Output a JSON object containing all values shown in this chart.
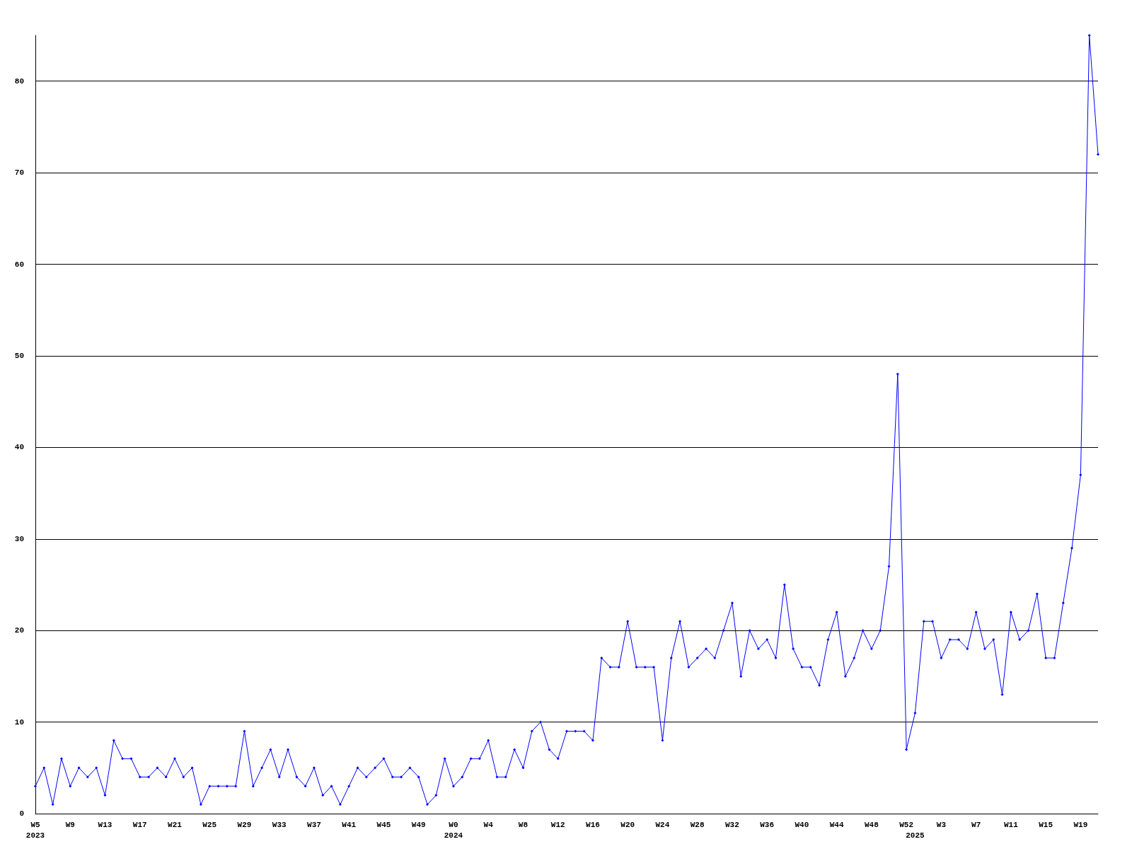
{
  "chart_data": {
    "type": "line",
    "categories": [
      "W5\n2023",
      null,
      null,
      null,
      "W9",
      null,
      null,
      null,
      "W13",
      null,
      null,
      null,
      "W17",
      null,
      null,
      null,
      "W21",
      null,
      null,
      null,
      "W25",
      null,
      null,
      null,
      "W29",
      null,
      null,
      null,
      "W33",
      null,
      null,
      null,
      "W37",
      null,
      null,
      null,
      "W41",
      null,
      null,
      null,
      "W45",
      null,
      null,
      null,
      "W49",
      null,
      null,
      null,
      "W0\n2024",
      null,
      null,
      null,
      "W4",
      null,
      null,
      null,
      "W8",
      null,
      null,
      null,
      "W12",
      null,
      null,
      null,
      "W16",
      null,
      null,
      null,
      "W20",
      null,
      null,
      null,
      "W24",
      null,
      null,
      null,
      "W28",
      null,
      null,
      null,
      "W32",
      null,
      null,
      null,
      "W36",
      null,
      null,
      null,
      "W40",
      null,
      null,
      null,
      "W44",
      null,
      null,
      null,
      "W48",
      null,
      null,
      null,
      "W52",
      "\n2025",
      null,
      null,
      "W3",
      null,
      null,
      null,
      "W7",
      null,
      null,
      null,
      "W11",
      null,
      null,
      null,
      "W15",
      null,
      null,
      null,
      "W19",
      null,
      null
    ],
    "series": [
      {
        "color": "#0000ff",
        "values": [
          3,
          5,
          1,
          6,
          3,
          5,
          4,
          5,
          2,
          8,
          6,
          6,
          4,
          4,
          5,
          4,
          6,
          4,
          5,
          1,
          3,
          3,
          3,
          3,
          9,
          3,
          5,
          7,
          4,
          7,
          4,
          3,
          5,
          2,
          3,
          1,
          3,
          5,
          4,
          5,
          6,
          4,
          4,
          5,
          4,
          1,
          2,
          6,
          3,
          4,
          6,
          6,
          8,
          4,
          4,
          7,
          5,
          9,
          10,
          7,
          6,
          9,
          9,
          9,
          8,
          17,
          16,
          16,
          21,
          16,
          16,
          16,
          8,
          17,
          21,
          16,
          17,
          18,
          17,
          20,
          23,
          15,
          20,
          18,
          19,
          17,
          25,
          18,
          16,
          16,
          14,
          19,
          22,
          15,
          17,
          20,
          18,
          20,
          27,
          48,
          7,
          11,
          21,
          21,
          17,
          19,
          19,
          18,
          22,
          18,
          19,
          13,
          22,
          19,
          20,
          24,
          17,
          17,
          23,
          29,
          37,
          85,
          72
        ]
      }
    ],
    "ylim": [
      0,
      85
    ],
    "yticks": [
      0,
      10,
      20,
      30,
      40,
      50,
      60,
      70,
      80
    ],
    "grid": "y",
    "marker": "diamond",
    "line_style": "solid"
  }
}
